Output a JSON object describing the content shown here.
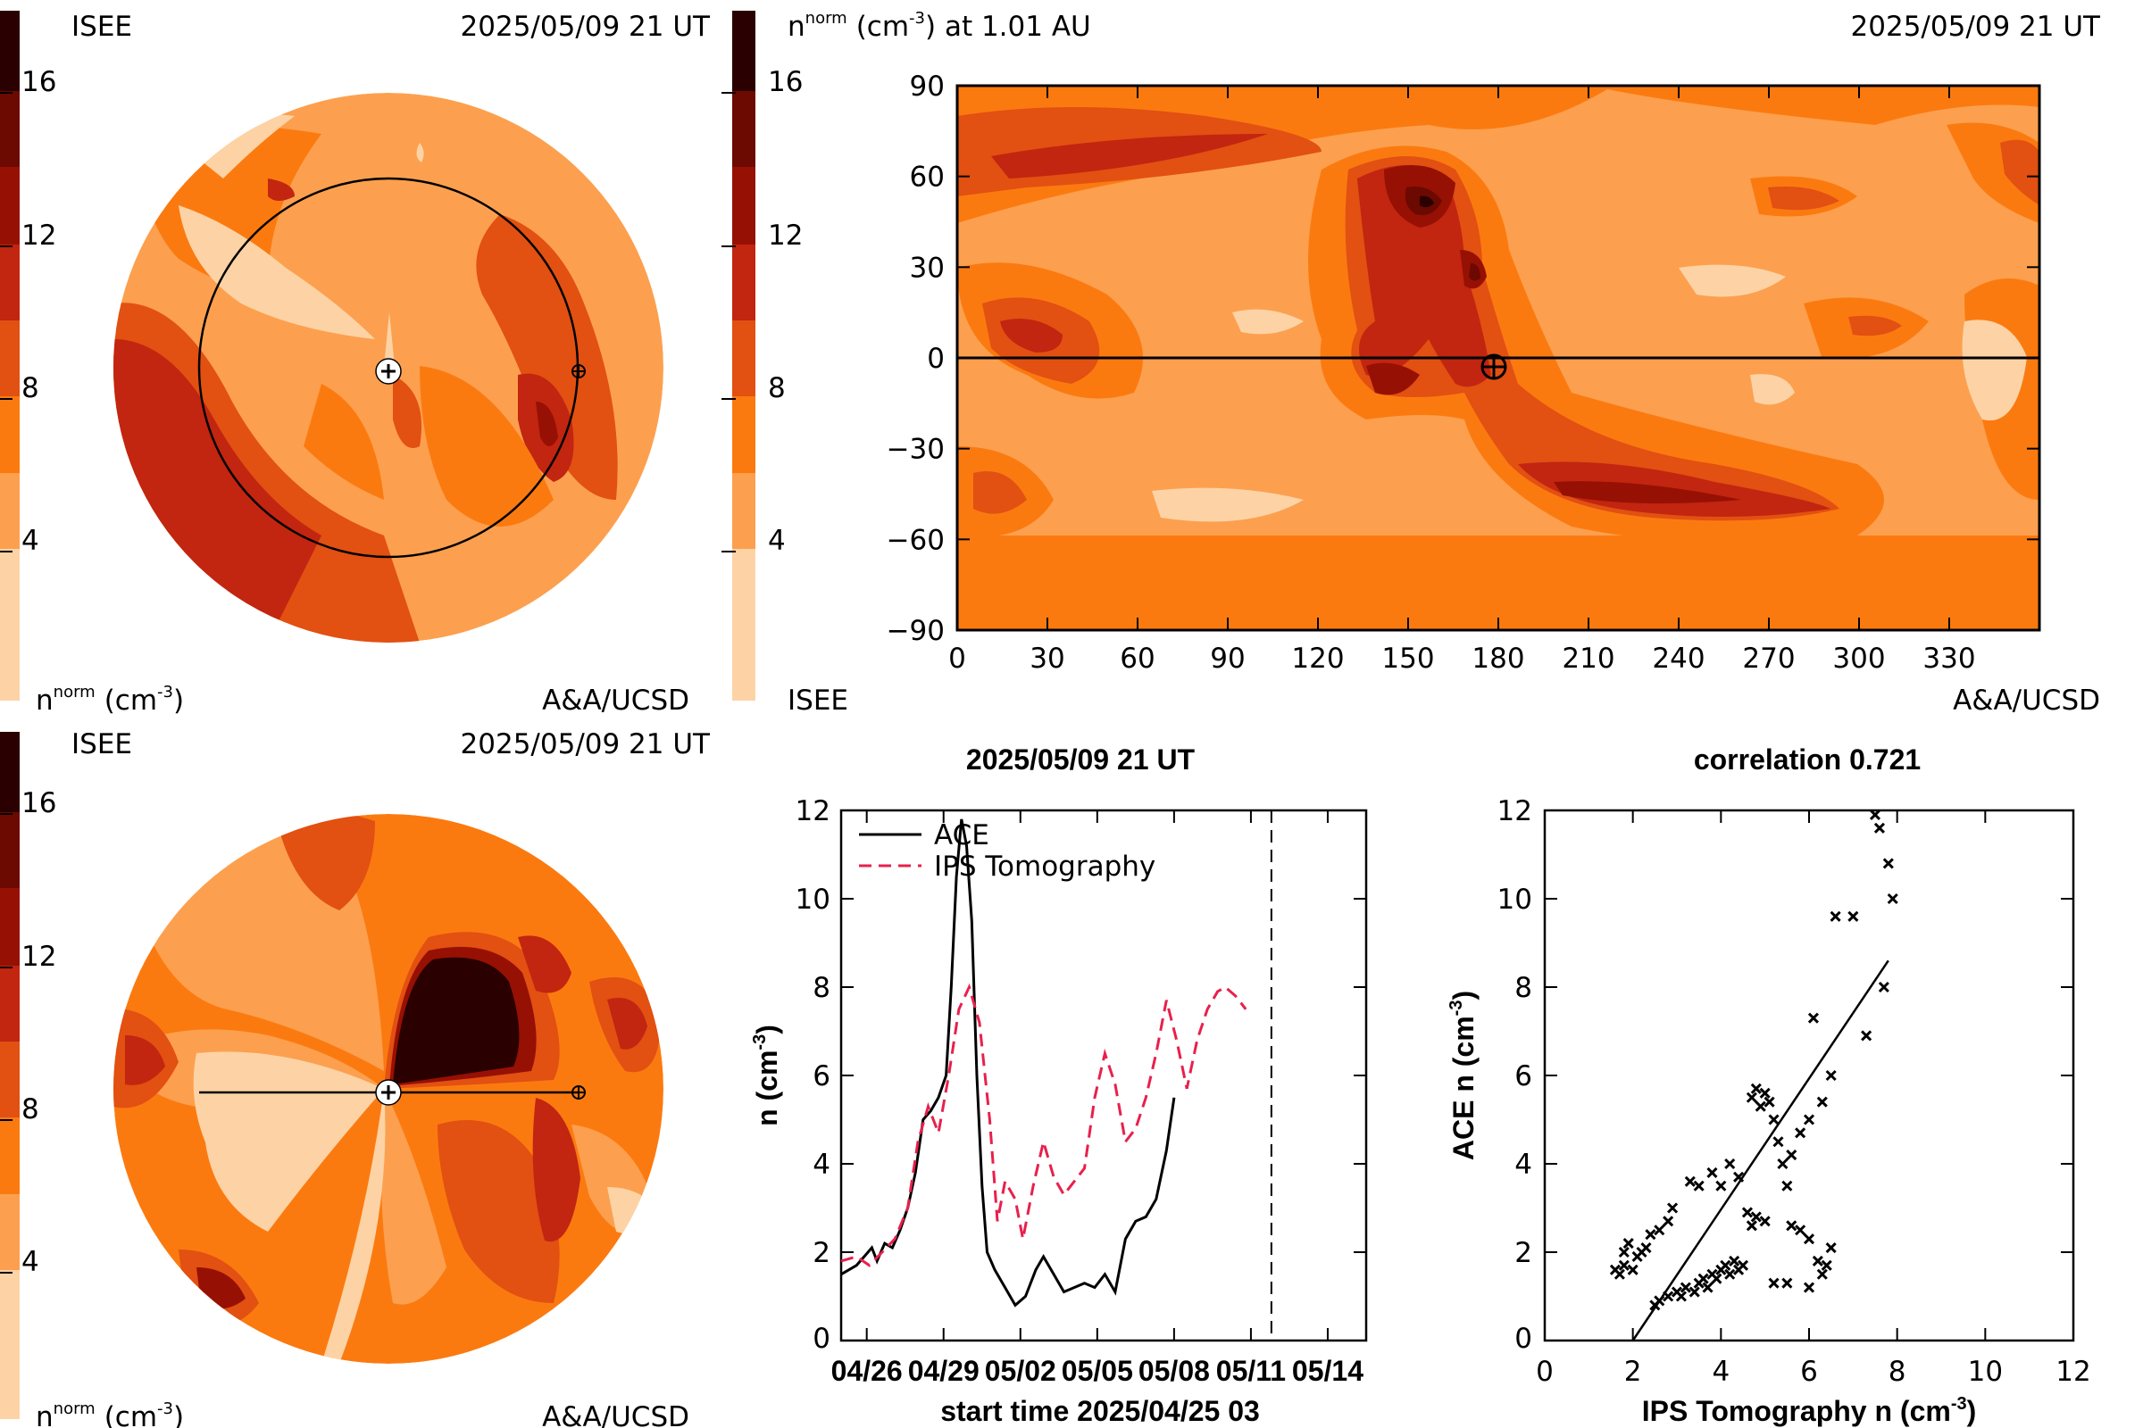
{
  "colors": {
    "scale": [
      "#fdd3a5",
      "#fca04f",
      "#fb7a10",
      "#e25012",
      "#c22510",
      "#971004",
      "#6c0900",
      "#2a0000"
    ],
    "dashed_series": "#e8204c"
  },
  "panel_tl": {
    "left_label": "ISEE",
    "timestamp": "2025/05/09 21 UT",
    "colorbar_ticks": [
      "16",
      "12",
      "8",
      "4"
    ],
    "unit_label": "n",
    "unit_sup": "norm",
    "unit_rest": "(cm",
    "unit_exp": "-3",
    "unit_close": ")",
    "credit": "A&A/UCSD"
  },
  "panel_tr": {
    "title_n": "n",
    "title_sup": "norm",
    "title_rest": "(cm",
    "title_exp": "-3",
    "title_tail": ") at 1.01 AU",
    "timestamp": "2025/05/09 21 UT",
    "colorbar_ticks": [
      "16",
      "12",
      "8",
      "4"
    ],
    "y_ticks": [
      "90",
      "60",
      "30",
      "0",
      "−30",
      "−60",
      "−90"
    ],
    "x_ticks": [
      "0",
      "30",
      "60",
      "90",
      "120",
      "150",
      "180",
      "210",
      "240",
      "270",
      "300",
      "330"
    ],
    "left_label": "ISEE",
    "credit": "A&A/UCSD"
  },
  "panel_bl": {
    "left_label": "ISEE",
    "timestamp": "2025/05/09 21 UT",
    "colorbar_ticks": [
      "16",
      "12",
      "8",
      "4"
    ],
    "unit_label": "n",
    "unit_sup": "norm",
    "unit_rest": "(cm",
    "unit_exp": "-3",
    "unit_close": ")",
    "credit": "A&A/UCSD"
  },
  "chart_data": [
    {
      "type": "line",
      "title": "2025/05/09 21 UT",
      "xlabel": "start time 2025/04/25 03",
      "ylabel_main": "n (cm",
      "ylabel_exp": "-3",
      "ylabel_close": ")",
      "x_tick_labels": [
        "04/26",
        "04/29",
        "05/02",
        "05/05",
        "05/08",
        "05/11",
        "05/14"
      ],
      "y_tick_labels": [
        "0",
        "2",
        "4",
        "6",
        "8",
        "10",
        "12"
      ],
      "xlim": [
        0,
        20.5
      ],
      "ylim": [
        0,
        12
      ],
      "legend": "top-left",
      "current_time_x": 16.8,
      "series": [
        {
          "name": "ACE",
          "style": "solid",
          "points": [
            [
              0,
              1.5
            ],
            [
              0.3,
              1.6
            ],
            [
              0.6,
              1.7
            ],
            [
              0.9,
              1.9
            ],
            [
              1.2,
              2.1
            ],
            [
              1.4,
              1.8
            ],
            [
              1.7,
              2.2
            ],
            [
              2.0,
              2.1
            ],
            [
              2.3,
              2.5
            ],
            [
              2.6,
              3.0
            ],
            [
              2.9,
              3.8
            ],
            [
              3.2,
              5.0
            ],
            [
              3.5,
              5.2
            ],
            [
              3.8,
              5.5
            ],
            [
              4.1,
              6.0
            ],
            [
              4.3,
              8.0
            ],
            [
              4.5,
              10.5
            ],
            [
              4.7,
              11.8
            ],
            [
              4.9,
              11.2
            ],
            [
              5.1,
              9.5
            ],
            [
              5.3,
              6.0
            ],
            [
              5.5,
              3.5
            ],
            [
              5.7,
              2.0
            ],
            [
              6.0,
              1.6
            ],
            [
              6.4,
              1.2
            ],
            [
              6.8,
              0.8
            ],
            [
              7.2,
              1.0
            ],
            [
              7.6,
              1.6
            ],
            [
              7.9,
              1.9
            ],
            [
              8.3,
              1.5
            ],
            [
              8.7,
              1.1
            ],
            [
              9.1,
              1.2
            ],
            [
              9.5,
              1.3
            ],
            [
              9.9,
              1.2
            ],
            [
              10.3,
              1.5
            ],
            [
              10.7,
              1.1
            ],
            [
              11.1,
              2.3
            ],
            [
              11.5,
              2.7
            ],
            [
              11.9,
              2.8
            ],
            [
              12.3,
              3.2
            ],
            [
              12.7,
              4.3
            ],
            [
              13.0,
              5.5
            ]
          ]
        },
        {
          "name": "IPS Tomography",
          "style": "dashed",
          "points": [
            [
              0,
              1.8
            ],
            [
              0.6,
              1.9
            ],
            [
              1.1,
              1.7
            ],
            [
              1.6,
              2.0
            ],
            [
              2.1,
              2.3
            ],
            [
              2.6,
              3.0
            ],
            [
              3.0,
              4.5
            ],
            [
              3.4,
              5.3
            ],
            [
              3.8,
              4.7
            ],
            [
              4.2,
              6.0
            ],
            [
              4.6,
              7.5
            ],
            [
              5.0,
              8.0
            ],
            [
              5.4,
              7.2
            ],
            [
              5.8,
              5.0
            ],
            [
              6.1,
              2.7
            ],
            [
              6.4,
              3.6
            ],
            [
              6.8,
              3.2
            ],
            [
              7.1,
              2.3
            ],
            [
              7.5,
              3.5
            ],
            [
              7.9,
              4.5
            ],
            [
              8.3,
              3.7
            ],
            [
              8.7,
              3.3
            ],
            [
              9.1,
              3.6
            ],
            [
              9.5,
              3.9
            ],
            [
              9.9,
              5.5
            ],
            [
              10.3,
              6.5
            ],
            [
              10.7,
              5.8
            ],
            [
              11.1,
              4.5
            ],
            [
              11.5,
              4.8
            ],
            [
              11.9,
              5.5
            ],
            [
              12.3,
              6.5
            ],
            [
              12.7,
              7.7
            ],
            [
              13.1,
              6.8
            ],
            [
              13.5,
              5.7
            ],
            [
              13.9,
              6.8
            ],
            [
              14.3,
              7.5
            ],
            [
              14.7,
              7.9
            ],
            [
              15.0,
              8.0
            ],
            [
              15.4,
              7.8
            ],
            [
              15.8,
              7.5
            ]
          ]
        }
      ]
    },
    {
      "type": "scatter",
      "title": "correlation 0.721",
      "xlabel_main": "IPS Tomography n (cm",
      "xlabel_exp": "-3",
      "xlabel_close": ")",
      "ylabel_main": "ACE n (cm",
      "ylabel_exp": "-3",
      "ylabel_close": ")",
      "x_tick_labels": [
        "0",
        "2",
        "4",
        "6",
        "8",
        "10",
        "12"
      ],
      "y_tick_labels": [
        "0",
        "2",
        "4",
        "6",
        "8",
        "10",
        "12"
      ],
      "xlim": [
        0,
        12
      ],
      "ylim": [
        0,
        12
      ],
      "fit_line": [
        [
          2.0,
          0.0
        ],
        [
          7.8,
          8.6
        ]
      ],
      "points": [
        [
          1.6,
          1.6
        ],
        [
          1.7,
          1.5
        ],
        [
          1.8,
          1.7
        ],
        [
          1.8,
          2.0
        ],
        [
          1.9,
          2.2
        ],
        [
          2.0,
          1.6
        ],
        [
          2.1,
          1.9
        ],
        [
          2.2,
          2.0
        ],
        [
          2.3,
          2.1
        ],
        [
          2.4,
          2.4
        ],
        [
          2.6,
          2.5
        ],
        [
          2.8,
          2.7
        ],
        [
          2.9,
          3.0
        ],
        [
          2.5,
          0.8
        ],
        [
          2.6,
          0.9
        ],
        [
          2.8,
          1.0
        ],
        [
          3.0,
          1.1
        ],
        [
          3.1,
          1.0
        ],
        [
          3.2,
          1.2
        ],
        [
          3.4,
          1.1
        ],
        [
          3.5,
          1.3
        ],
        [
          3.6,
          1.4
        ],
        [
          3.7,
          1.2
        ],
        [
          3.8,
          1.5
        ],
        [
          3.9,
          1.4
        ],
        [
          4.0,
          1.6
        ],
        [
          4.1,
          1.7
        ],
        [
          4.2,
          1.5
        ],
        [
          4.3,
          1.8
        ],
        [
          4.4,
          1.6
        ],
        [
          4.5,
          1.7
        ],
        [
          3.3,
          3.6
        ],
        [
          3.5,
          3.5
        ],
        [
          3.8,
          3.8
        ],
        [
          4.0,
          3.5
        ],
        [
          4.2,
          4.0
        ],
        [
          4.4,
          3.7
        ],
        [
          4.6,
          2.9
        ],
        [
          4.7,
          2.6
        ],
        [
          4.8,
          2.8
        ],
        [
          5.0,
          2.7
        ],
        [
          4.7,
          5.5
        ],
        [
          4.8,
          5.7
        ],
        [
          4.9,
          5.3
        ],
        [
          5.0,
          5.6
        ],
        [
          5.1,
          5.4
        ],
        [
          5.2,
          5.0
        ],
        [
          5.3,
          4.5
        ],
        [
          5.4,
          4.0
        ],
        [
          5.5,
          3.5
        ],
        [
          5.6,
          2.6
        ],
        [
          5.8,
          2.5
        ],
        [
          6.0,
          2.3
        ],
        [
          6.2,
          1.8
        ],
        [
          6.3,
          1.5
        ],
        [
          6.4,
          1.7
        ],
        [
          6.5,
          2.1
        ],
        [
          5.6,
          4.2
        ],
        [
          5.8,
          4.7
        ],
        [
          6.0,
          5.0
        ],
        [
          6.1,
          7.3
        ],
        [
          6.3,
          5.4
        ],
        [
          6.5,
          6.0
        ],
        [
          6.6,
          9.6
        ],
        [
          7.0,
          9.6
        ],
        [
          7.3,
          6.9
        ],
        [
          7.5,
          11.9
        ],
        [
          7.6,
          11.6
        ],
        [
          7.7,
          8.0
        ],
        [
          7.8,
          10.8
        ],
        [
          7.9,
          10.0
        ],
        [
          5.2,
          1.3
        ],
        [
          5.5,
          1.3
        ],
        [
          6.0,
          1.2
        ]
      ]
    }
  ]
}
